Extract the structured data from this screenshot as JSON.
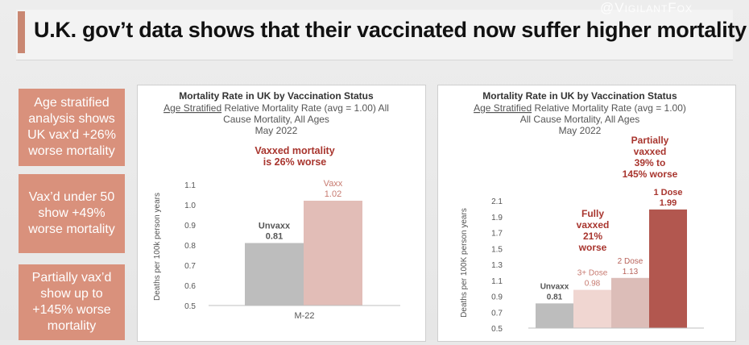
{
  "header": {
    "title": "U.K. gov’t data shows that their vaccinated now suffer higher mortality",
    "watermark": "@VigilantFox"
  },
  "sidebar": {
    "boxes": [
      "Age stratified analysis shows UK vax’d +26% worse mortality",
      "Vax’d under 50 show +49% worse mortality",
      "Partially vax’d show up to +145% worse mortality"
    ]
  },
  "colors": {
    "box": "#d9917c",
    "unvaxx": "#bdbdbd",
    "vaxx": "#e2bdb7",
    "dose3": "#f0d6d1",
    "dose2": "#dcbdb8",
    "dose1": "#b2574f",
    "annotation": "#a8352e"
  },
  "chart_data": [
    {
      "type": "bar",
      "title": "Mortality Rate in UK by Vaccination Status",
      "subtitle_underlined": "Age Stratified",
      "subtitle_rest": " Relative Mortality Rate (avg = 1.00) All",
      "subtitle_line2": "Cause Mortality, All Ages",
      "subtitle_line3": "May 2022",
      "ylabel": "Deaths per 100k person years",
      "xlabel": "",
      "categories": [
        "M-22"
      ],
      "ylim": [
        0.5,
        1.1
      ],
      "yticks": [
        "0.5",
        "0.6",
        "0.7",
        "0.8",
        "0.9",
        "1.0",
        "1.1"
      ],
      "series": [
        {
          "name": "Unvaxx",
          "values": [
            0.81
          ],
          "label": "0.81",
          "color": "#bdbdbd"
        },
        {
          "name": "Vaxx",
          "values": [
            1.02
          ],
          "label": "1.02",
          "color": "#e2bdb7"
        }
      ],
      "annotation": [
        "Vaxxed  mortality",
        "is 26% worse"
      ]
    },
    {
      "type": "bar",
      "title": "Mortality Rate in UK by Vaccination Status",
      "subtitle_underlined": "Age Stratified",
      "subtitle_rest": " Relative Mortality Rate (avg = 1.00)",
      "subtitle_line2": "All Cause Mortality, All Ages",
      "subtitle_line3": "May 2022",
      "ylabel": "Deaths per 100K person years",
      "ylim": [
        0.5,
        2.1
      ],
      "yticks": [
        "0.5",
        "0.7",
        "0.9",
        "1.1",
        "1.3",
        "1.5",
        "1.7",
        "1.9",
        "2.1"
      ],
      "series": [
        {
          "name": "Unvaxx",
          "value": 0.81,
          "label": "0.81",
          "color": "#bdbdbd",
          "label_color": "#555555"
        },
        {
          "name": "3+ Dose",
          "value": 0.98,
          "label": "0.98",
          "color": "#f0d6d1",
          "label_color": "#c77a70"
        },
        {
          "name": "2 Dose",
          "value": 1.13,
          "label": "1.13",
          "color": "#dcbdb8",
          "label_color": "#b8625a"
        },
        {
          "name": "1 Dose",
          "value": 1.99,
          "label": "1.99",
          "color": "#b2574f",
          "label_color": "#a8352e"
        }
      ],
      "annotation_fully": [
        "Fully",
        "vaxxed",
        "21%",
        "worse"
      ],
      "annotation_partial": [
        "Partially",
        "vaxxed",
        "39% to",
        "145% worse"
      ]
    }
  ]
}
